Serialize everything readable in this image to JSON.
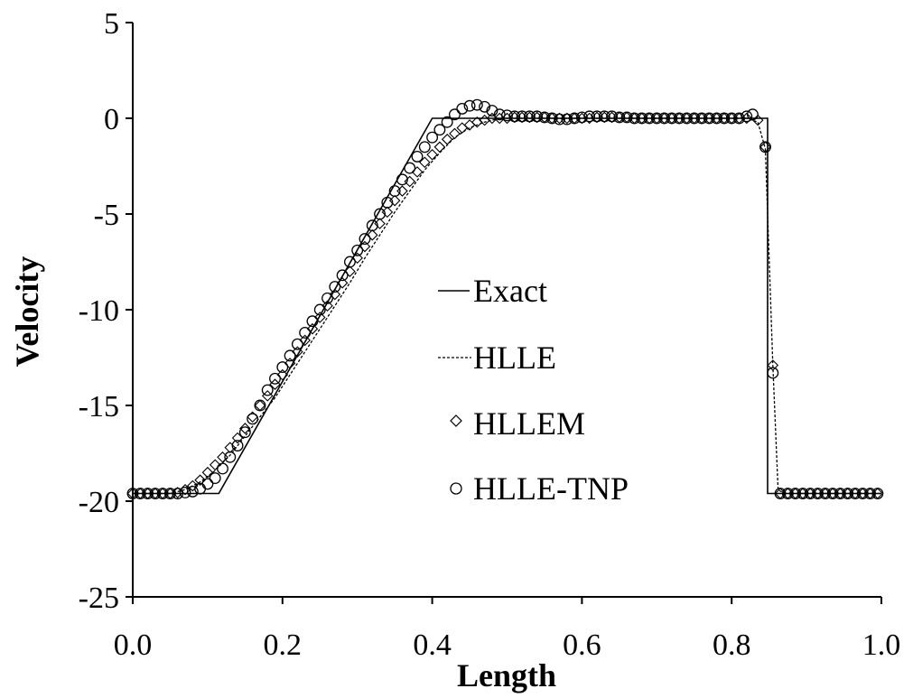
{
  "chart_data": {
    "type": "line",
    "xlabel": "Length",
    "ylabel": "Velocity",
    "xlim": [
      0,
      1
    ],
    "ylim": [
      -25,
      5
    ],
    "xticks": [
      "0.0",
      "0.2",
      "0.4",
      "0.6",
      "0.8",
      "1.0"
    ],
    "yticks": [
      "5",
      "0",
      "-5",
      "-10",
      "-15",
      "-20",
      "-25"
    ],
    "grid": false,
    "legend_position": "center",
    "series": [
      {
        "name": "Exact",
        "style": "solid-line",
        "x": [
          0.0,
          0.115,
          0.4,
          0.848,
          0.848,
          1.0
        ],
        "y": [
          -19.6,
          -19.6,
          0.0,
          0.0,
          -19.6,
          -19.6
        ]
      },
      {
        "name": "HLLE",
        "style": "dashed-line",
        "x": [
          0.0,
          0.05,
          0.07,
          0.09,
          0.11,
          0.13,
          0.15,
          0.17,
          0.19,
          0.21,
          0.23,
          0.25,
          0.27,
          0.29,
          0.31,
          0.33,
          0.35,
          0.37,
          0.39,
          0.41,
          0.43,
          0.45,
          0.47,
          0.49,
          0.5,
          0.55,
          0.6,
          0.65,
          0.7,
          0.75,
          0.8,
          0.82,
          0.835,
          0.845,
          0.855,
          0.862,
          0.87,
          0.9,
          0.95,
          1.0
        ],
        "y": [
          -19.6,
          -19.6,
          -19.4,
          -19.0,
          -18.4,
          -17.6,
          -16.6,
          -15.6,
          -14.6,
          -13.4,
          -12.2,
          -11.0,
          -9.8,
          -8.6,
          -7.3,
          -6.1,
          -4.9,
          -3.8,
          -2.7,
          -1.8,
          -1.0,
          -0.5,
          -0.2,
          0.0,
          0.0,
          0.0,
          0.0,
          0.0,
          0.0,
          0.0,
          0.0,
          0.0,
          -0.2,
          -1.6,
          -12.9,
          -19.4,
          -19.6,
          -19.6,
          -19.6,
          -19.6
        ]
      },
      {
        "name": "HLLEM",
        "style": "diamond-marker",
        "x": [
          0.0,
          0.01,
          0.02,
          0.03,
          0.04,
          0.05,
          0.06,
          0.07,
          0.08,
          0.09,
          0.1,
          0.11,
          0.12,
          0.13,
          0.14,
          0.15,
          0.16,
          0.17,
          0.18,
          0.19,
          0.2,
          0.21,
          0.22,
          0.23,
          0.24,
          0.25,
          0.26,
          0.27,
          0.28,
          0.29,
          0.3,
          0.31,
          0.32,
          0.33,
          0.34,
          0.35,
          0.36,
          0.37,
          0.38,
          0.39,
          0.4,
          0.41,
          0.42,
          0.43,
          0.44,
          0.45,
          0.46,
          0.47,
          0.48,
          0.49,
          0.5,
          0.51,
          0.52,
          0.53,
          0.54,
          0.55,
          0.56,
          0.57,
          0.58,
          0.59,
          0.6,
          0.61,
          0.62,
          0.63,
          0.64,
          0.65,
          0.66,
          0.67,
          0.68,
          0.69,
          0.7,
          0.71,
          0.72,
          0.73,
          0.74,
          0.75,
          0.76,
          0.77,
          0.78,
          0.79,
          0.8,
          0.81,
          0.82,
          0.835,
          0.845,
          0.855,
          0.865,
          0.875,
          0.885,
          0.895,
          0.905,
          0.915,
          0.925,
          0.935,
          0.945,
          0.955,
          0.965,
          0.975,
          0.985,
          0.995
        ],
        "y": [
          -19.6,
          -19.6,
          -19.6,
          -19.6,
          -19.6,
          -19.6,
          -19.55,
          -19.4,
          -19.2,
          -18.9,
          -18.5,
          -18.1,
          -17.7,
          -17.2,
          -16.7,
          -16.2,
          -15.6,
          -15.0,
          -14.5,
          -13.9,
          -13.4,
          -12.8,
          -12.2,
          -11.6,
          -11.0,
          -10.4,
          -9.8,
          -9.2,
          -8.6,
          -8.0,
          -7.3,
          -6.7,
          -6.1,
          -5.5,
          -4.9,
          -4.3,
          -3.8,
          -3.3,
          -2.8,
          -2.3,
          -1.9,
          -1.5,
          -1.1,
          -0.8,
          -0.5,
          -0.35,
          -0.2,
          -0.1,
          0.0,
          0.0,
          0.0,
          0.05,
          0.05,
          0.05,
          0.05,
          0.05,
          0.0,
          0.0,
          0.0,
          0.0,
          0.0,
          0.0,
          0.05,
          0.05,
          0.05,
          0.05,
          0.05,
          0.0,
          0.0,
          0.0,
          0.0,
          0.0,
          0.0,
          0.0,
          0.0,
          0.0,
          0.0,
          0.0,
          0.0,
          0.0,
          0.0,
          0.0,
          0.0,
          -0.1,
          -1.5,
          -12.9,
          -19.6,
          -19.6,
          -19.6,
          -19.6,
          -19.6,
          -19.6,
          -19.6,
          -19.6,
          -19.6,
          -19.6,
          -19.6,
          -19.6,
          -19.6,
          -19.6
        ]
      },
      {
        "name": "HLLE-TNP",
        "style": "circle-marker",
        "x": [
          0.0,
          0.01,
          0.02,
          0.03,
          0.04,
          0.05,
          0.06,
          0.07,
          0.08,
          0.09,
          0.1,
          0.11,
          0.12,
          0.13,
          0.14,
          0.15,
          0.16,
          0.17,
          0.18,
          0.19,
          0.2,
          0.21,
          0.22,
          0.23,
          0.24,
          0.25,
          0.26,
          0.27,
          0.28,
          0.29,
          0.3,
          0.31,
          0.32,
          0.33,
          0.34,
          0.35,
          0.36,
          0.37,
          0.38,
          0.39,
          0.4,
          0.41,
          0.42,
          0.43,
          0.44,
          0.45,
          0.46,
          0.47,
          0.48,
          0.49,
          0.5,
          0.51,
          0.52,
          0.53,
          0.54,
          0.55,
          0.56,
          0.57,
          0.58,
          0.59,
          0.6,
          0.61,
          0.62,
          0.63,
          0.64,
          0.65,
          0.66,
          0.67,
          0.68,
          0.69,
          0.7,
          0.71,
          0.72,
          0.73,
          0.74,
          0.75,
          0.76,
          0.77,
          0.78,
          0.79,
          0.8,
          0.81,
          0.82,
          0.828,
          0.845,
          0.855,
          0.865,
          0.875,
          0.885,
          0.895,
          0.905,
          0.915,
          0.925,
          0.935,
          0.945,
          0.955,
          0.965,
          0.975,
          0.985,
          0.995
        ],
        "y": [
          -19.6,
          -19.6,
          -19.6,
          -19.6,
          -19.6,
          -19.6,
          -19.6,
          -19.55,
          -19.5,
          -19.35,
          -19.1,
          -18.8,
          -18.3,
          -17.7,
          -17.1,
          -16.4,
          -15.7,
          -15.0,
          -14.2,
          -13.6,
          -13.0,
          -12.4,
          -11.8,
          -11.2,
          -10.6,
          -10.0,
          -9.4,
          -8.8,
          -8.2,
          -7.5,
          -6.9,
          -6.3,
          -5.6,
          -5.0,
          -4.4,
          -3.8,
          -3.2,
          -2.6,
          -2.0,
          -1.5,
          -1.0,
          -0.6,
          -0.2,
          0.2,
          0.5,
          0.65,
          0.7,
          0.6,
          0.4,
          0.2,
          0.15,
          0.1,
          0.1,
          0.1,
          0.1,
          0.05,
          0.0,
          -0.05,
          -0.05,
          0.0,
          0.05,
          0.1,
          0.1,
          0.1,
          0.1,
          0.05,
          0.05,
          0.0,
          0.0,
          0.0,
          0.0,
          0.0,
          0.0,
          0.0,
          0.0,
          0.0,
          0.0,
          0.0,
          0.0,
          0.0,
          0.0,
          0.0,
          0.1,
          0.2,
          -1.5,
          -13.3,
          -19.6,
          -19.6,
          -19.6,
          -19.6,
          -19.6,
          -19.6,
          -19.6,
          -19.6,
          -19.6,
          -19.6,
          -19.6,
          -19.6,
          -19.6,
          -19.6
        ]
      }
    ]
  }
}
